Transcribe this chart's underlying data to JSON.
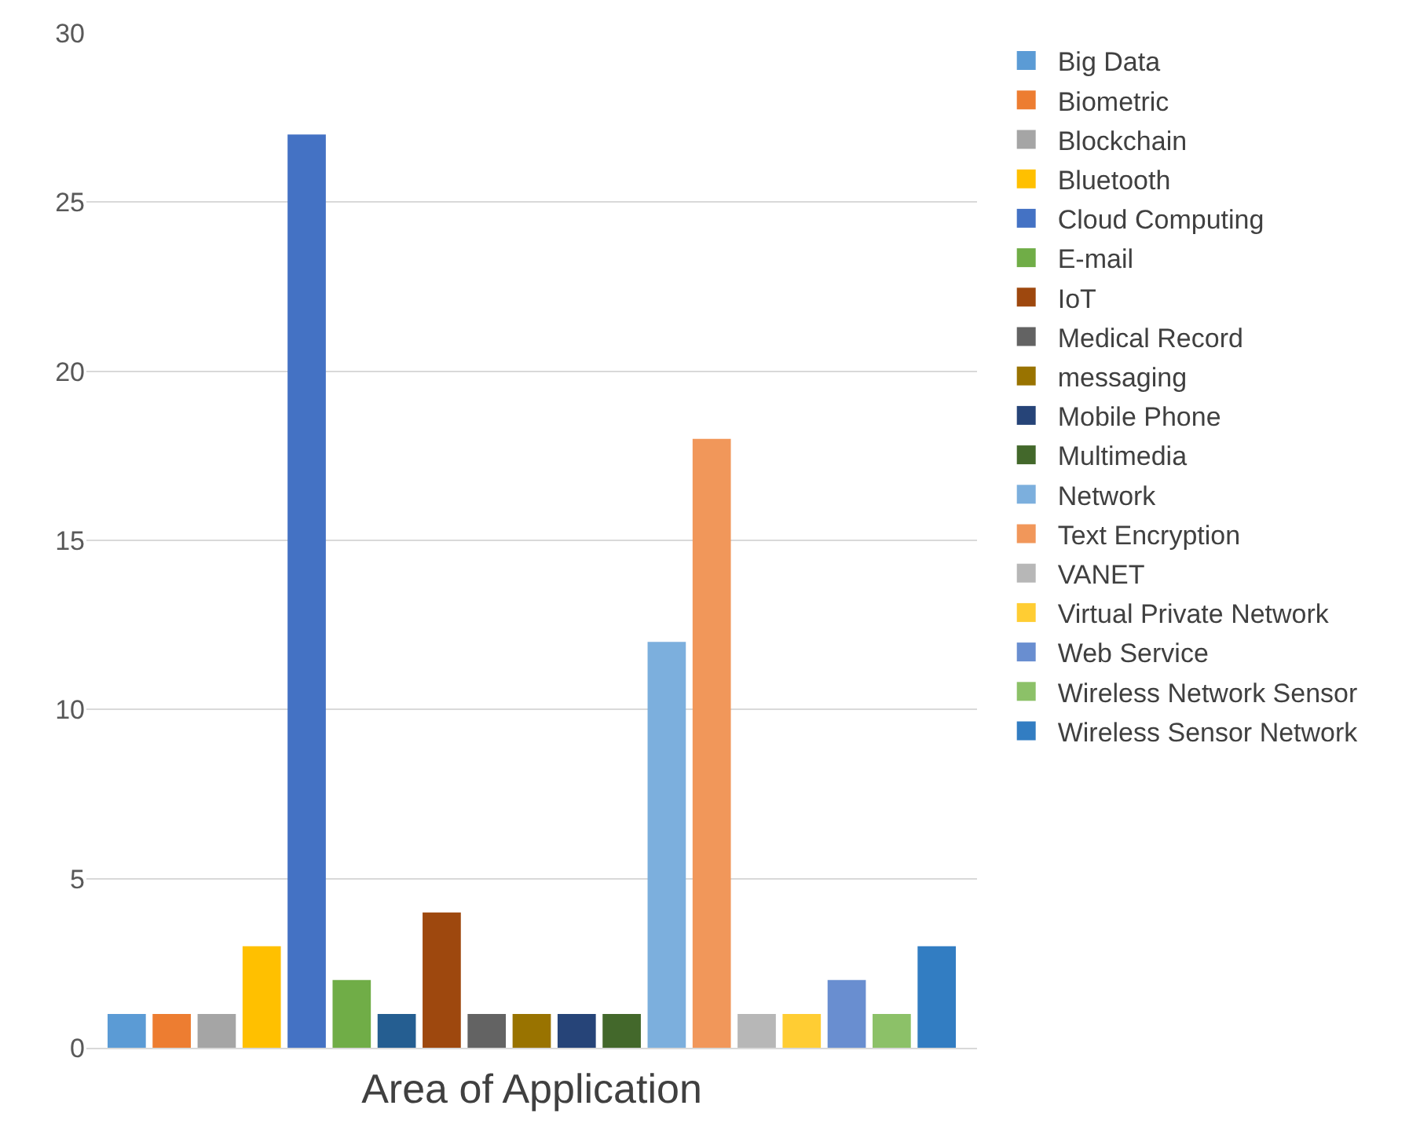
{
  "chart_data": {
    "type": "bar",
    "xlabel": "Area of Application",
    "categories": [
      null
    ],
    "ylim": [
      0,
      30
    ],
    "yticks": [
      0,
      5,
      10,
      15,
      20,
      25,
      30
    ],
    "grid": "y",
    "legend": "right",
    "series": [
      {
        "name": "Big Data",
        "color": "#5b9bd5",
        "values": [
          1
        ]
      },
      {
        "name": "Biometric",
        "color": "#ed7d31",
        "values": [
          1
        ]
      },
      {
        "name": "Blockchain",
        "color": "#a5a5a5",
        "values": [
          1
        ]
      },
      {
        "name": "Bluetooth",
        "color": "#ffc000",
        "values": [
          3
        ]
      },
      {
        "name": "Cloud Computing",
        "color": "#4472c4",
        "values": [
          27
        ]
      },
      {
        "name": "E-mail",
        "color": "#70ad47",
        "values": [
          2
        ]
      },
      {
        "color": "#255e91",
        "values": [
          1
        ]
      },
      {
        "name": "IoT",
        "color": "#9e480e",
        "values": [
          4
        ]
      },
      {
        "name": "Medical Record",
        "color": "#636363",
        "values": [
          1
        ]
      },
      {
        "name": "messaging",
        "color": "#997300",
        "values": [
          1
        ]
      },
      {
        "name": "Mobile Phone",
        "color": "#264478",
        "values": [
          1
        ]
      },
      {
        "name": "Multimedia",
        "color": "#43682b",
        "values": [
          1
        ]
      },
      {
        "name": "Network",
        "color": "#7cafdd",
        "values": [
          12
        ]
      },
      {
        "name": "Text Encryption",
        "color": "#f1975a",
        "values": [
          18
        ]
      },
      {
        "name": "VANET",
        "color": "#b7b7b7",
        "values": [
          1
        ]
      },
      {
        "name": "Virtual Private Network",
        "color": "#ffcd33",
        "values": [
          1
        ]
      },
      {
        "name": "Web Service",
        "color": "#698ed0",
        "values": [
          2
        ]
      },
      {
        "name": "Wireless Network Sensor",
        "color": "#8cc168",
        "values": [
          1
        ]
      },
      {
        "name": "Wireless Sensor Network",
        "color": "#327dc2",
        "values": [
          3
        ]
      }
    ]
  }
}
